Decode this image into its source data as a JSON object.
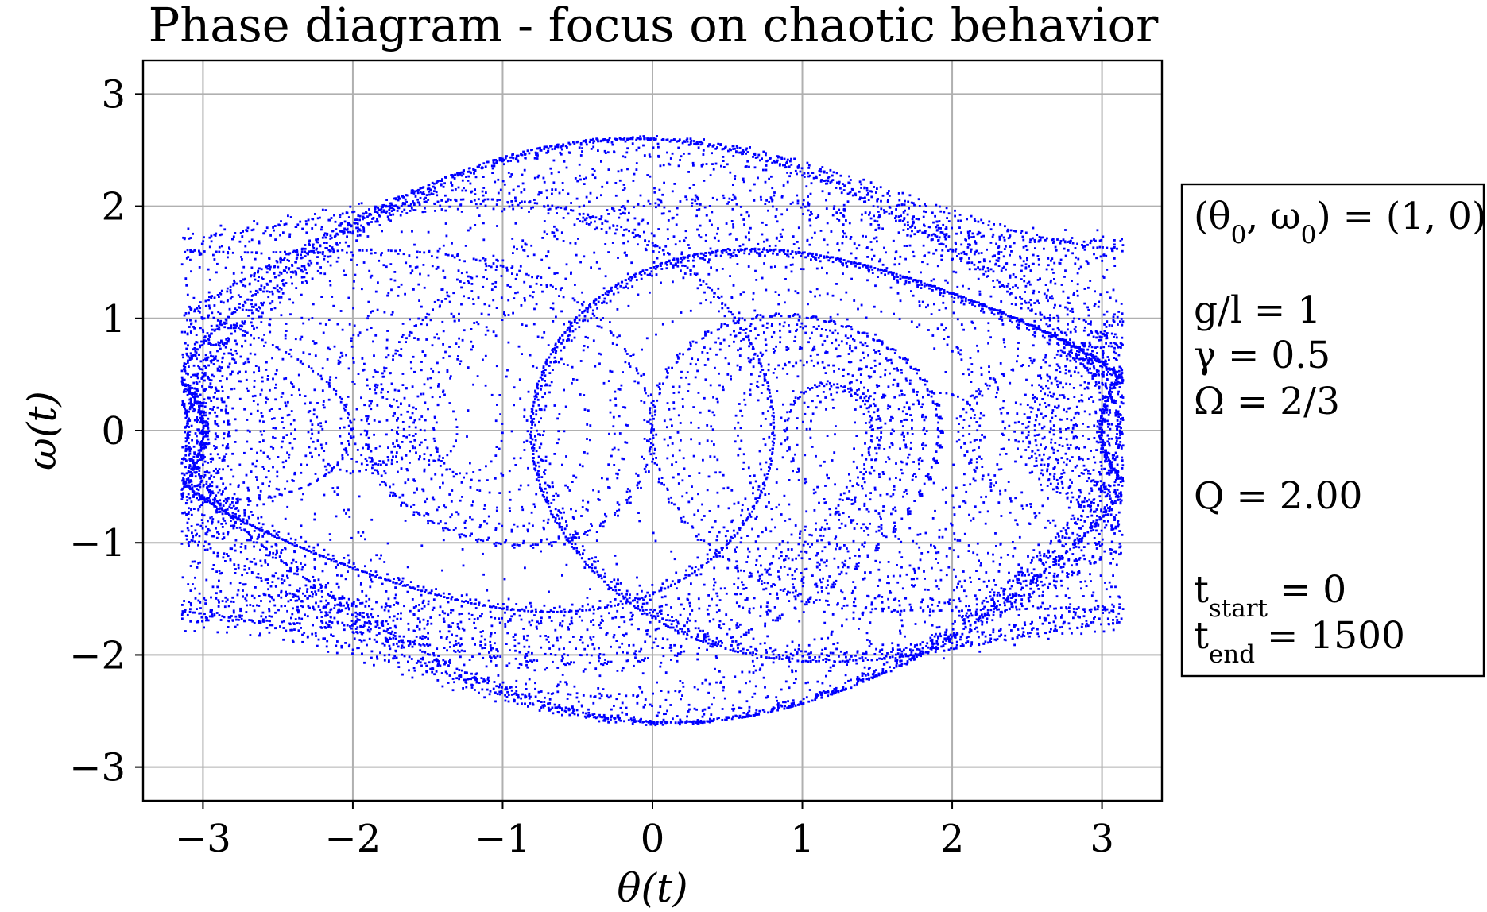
{
  "chart_data": {
    "type": "scatter",
    "title": "Phase diagram - focus on chaotic behavior",
    "xlabel": "θ(t)",
    "ylabel": "ω(t)",
    "xlim": [
      -3.4,
      3.4
    ],
    "ylim": [
      -3.3,
      3.3
    ],
    "xticks": [
      -3,
      -2,
      -1,
      0,
      1,
      2,
      3
    ],
    "yticks": [
      -3,
      -2,
      -1,
      0,
      1,
      2,
      3
    ],
    "xtick_labels": [
      "−3",
      "−2",
      "−1",
      "0",
      "1",
      "2",
      "3"
    ],
    "ytick_labels": [
      "−3",
      "−2",
      "−1",
      "0",
      "1",
      "2",
      "3"
    ],
    "grid": true,
    "marker_color": "#0000ff",
    "grid_color": "#b0b0b0",
    "x_range_of_points": [
      -3.14159,
      3.14159
    ],
    "y_range_of_points": [
      -3.07,
      3.07
    ],
    "legend_placement": "outside-right",
    "annotation_lines": [
      {
        "main": "(θ",
        "sub": "0",
        "mid": ", ω",
        "sub2": "0",
        "tail": ") = (1, 0)"
      },
      {
        "main": "g/l = 1"
      },
      {
        "main": "γ   = 0.5"
      },
      {
        "main": "Ω   = 2/3"
      },
      {
        "main": "Q   = 2.00"
      },
      {
        "main": "t",
        "sub": "start",
        "tail": " = 0"
      },
      {
        "main": "t",
        "sub": "end",
        "tail": "  = 1500"
      }
    ],
    "parameters": {
      "theta0": 1,
      "omega0": 0,
      "g_over_l": 1,
      "gamma": 0.5,
      "Omega": "2/3",
      "Q": 2.0,
      "t_start": 0,
      "t_end": 1500
    }
  }
}
